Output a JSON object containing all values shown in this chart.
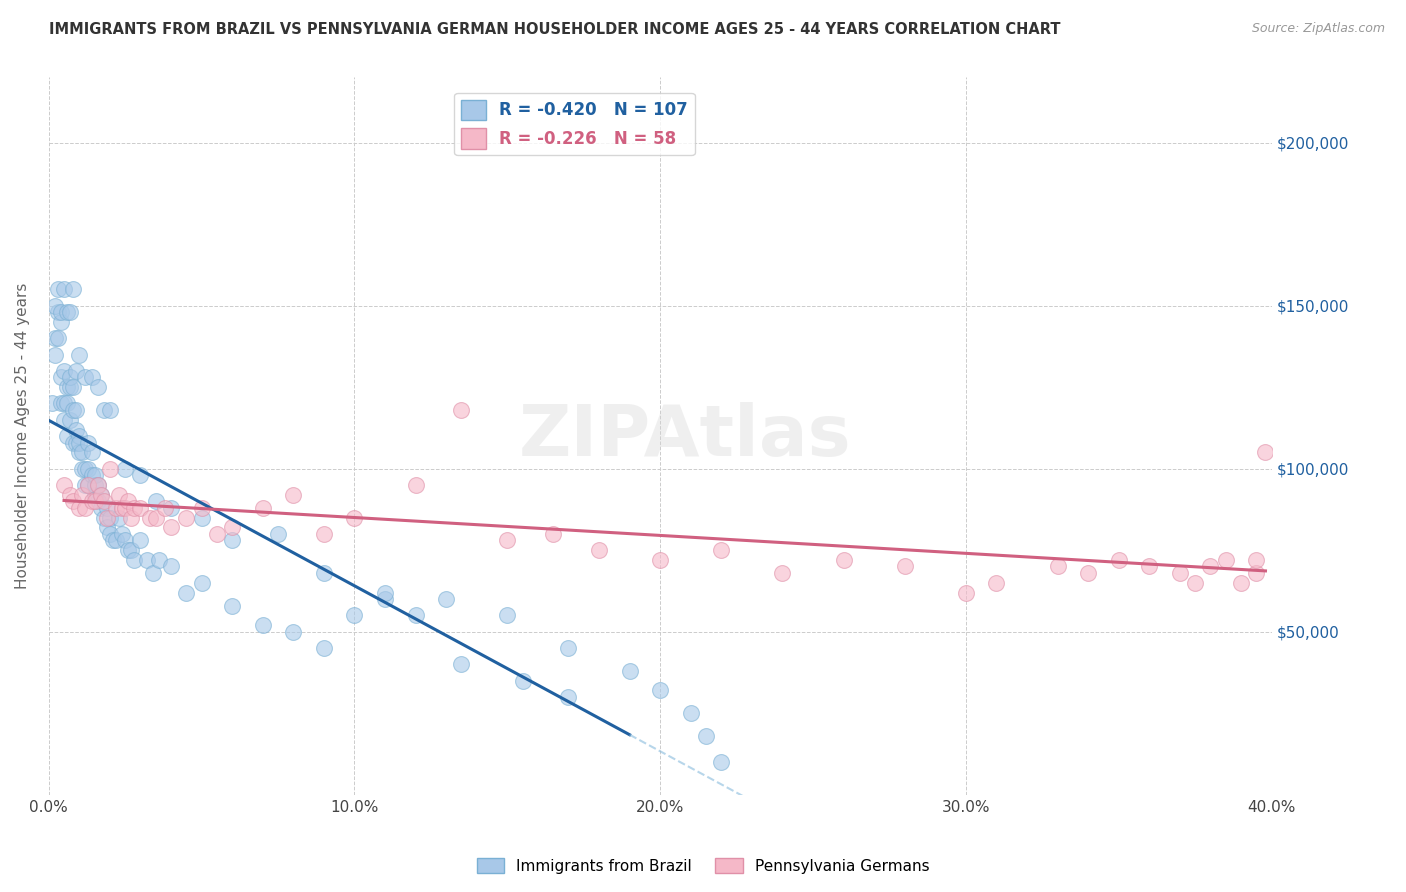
{
  "title": "IMMIGRANTS FROM BRAZIL VS PENNSYLVANIA GERMAN HOUSEHOLDER INCOME AGES 25 - 44 YEARS CORRELATION CHART",
  "source": "Source: ZipAtlas.com",
  "ylabel": "Householder Income Ages 25 - 44 years",
  "xlim": [
    0.0,
    0.4
  ],
  "ylim": [
    0,
    220000
  ],
  "xtick_labels": [
    "0.0%",
    "10.0%",
    "20.0%",
    "30.0%",
    "40.0%"
  ],
  "xtick_vals": [
    0.0,
    0.1,
    0.2,
    0.3,
    0.4
  ],
  "ytick_labels": [
    "$50,000",
    "$100,000",
    "$150,000",
    "$200,000"
  ],
  "ytick_vals": [
    50000,
    100000,
    150000,
    200000
  ],
  "blue_R": "-0.420",
  "blue_N": "107",
  "pink_R": "-0.226",
  "pink_N": "58",
  "blue_label": "Immigrants from Brazil",
  "pink_label": "Pennsylvania Germans",
  "blue_dot_color": "#a8c8e8",
  "blue_edge_color": "#7ab0d4",
  "blue_line_color": "#2060a0",
  "pink_dot_color": "#f5b8c8",
  "pink_edge_color": "#e090a8",
  "pink_line_color": "#d06080",
  "watermark": "ZIPAtlas",
  "background_color": "#ffffff",
  "blue_scatter_x": [
    0.001,
    0.002,
    0.002,
    0.003,
    0.003,
    0.004,
    0.004,
    0.004,
    0.005,
    0.005,
    0.005,
    0.006,
    0.006,
    0.006,
    0.007,
    0.007,
    0.007,
    0.008,
    0.008,
    0.008,
    0.009,
    0.009,
    0.009,
    0.01,
    0.01,
    0.01,
    0.011,
    0.011,
    0.012,
    0.012,
    0.013,
    0.013,
    0.013,
    0.014,
    0.014,
    0.015,
    0.015,
    0.015,
    0.016,
    0.016,
    0.017,
    0.017,
    0.018,
    0.019,
    0.019,
    0.02,
    0.02,
    0.021,
    0.022,
    0.023,
    0.024,
    0.025,
    0.026,
    0.027,
    0.028,
    0.03,
    0.032,
    0.034,
    0.036,
    0.04,
    0.045,
    0.05,
    0.06,
    0.07,
    0.08,
    0.09,
    0.1,
    0.11,
    0.12,
    0.135,
    0.155,
    0.17,
    0.002,
    0.003,
    0.004,
    0.005,
    0.006,
    0.007,
    0.008,
    0.009,
    0.01,
    0.012,
    0.014,
    0.016,
    0.018,
    0.02,
    0.025,
    0.03,
    0.035,
    0.04,
    0.05,
    0.06,
    0.075,
    0.09,
    0.11,
    0.13,
    0.15,
    0.17,
    0.19,
    0.2,
    0.21,
    0.215,
    0.22
  ],
  "blue_scatter_y": [
    120000,
    135000,
    140000,
    140000,
    148000,
    145000,
    128000,
    120000,
    130000,
    115000,
    120000,
    120000,
    125000,
    110000,
    115000,
    125000,
    128000,
    108000,
    118000,
    125000,
    108000,
    112000,
    118000,
    105000,
    110000,
    108000,
    100000,
    105000,
    95000,
    100000,
    100000,
    108000,
    95000,
    98000,
    105000,
    92000,
    95000,
    98000,
    90000,
    95000,
    92000,
    88000,
    85000,
    82000,
    88000,
    80000,
    85000,
    78000,
    78000,
    85000,
    80000,
    78000,
    75000,
    75000,
    72000,
    78000,
    72000,
    68000,
    72000,
    70000,
    62000,
    65000,
    58000,
    52000,
    50000,
    45000,
    55000,
    60000,
    55000,
    40000,
    35000,
    30000,
    150000,
    155000,
    148000,
    155000,
    148000,
    148000,
    155000,
    130000,
    135000,
    128000,
    128000,
    125000,
    118000,
    118000,
    100000,
    98000,
    90000,
    88000,
    85000,
    78000,
    80000,
    68000,
    62000,
    60000,
    55000,
    45000,
    38000,
    32000,
    25000,
    18000,
    10000
  ],
  "pink_scatter_x": [
    0.005,
    0.007,
    0.008,
    0.01,
    0.011,
    0.012,
    0.013,
    0.014,
    0.015,
    0.016,
    0.017,
    0.018,
    0.019,
    0.02,
    0.022,
    0.023,
    0.024,
    0.025,
    0.026,
    0.027,
    0.028,
    0.03,
    0.033,
    0.035,
    0.038,
    0.04,
    0.045,
    0.05,
    0.055,
    0.06,
    0.07,
    0.08,
    0.09,
    0.1,
    0.12,
    0.135,
    0.15,
    0.165,
    0.18,
    0.2,
    0.22,
    0.24,
    0.26,
    0.28,
    0.3,
    0.31,
    0.33,
    0.34,
    0.35,
    0.36,
    0.37,
    0.375,
    0.38,
    0.385,
    0.39,
    0.395,
    0.395,
    0.398
  ],
  "pink_scatter_y": [
    95000,
    92000,
    90000,
    88000,
    92000,
    88000,
    95000,
    90000,
    90000,
    95000,
    92000,
    90000,
    85000,
    100000,
    88000,
    92000,
    88000,
    88000,
    90000,
    85000,
    88000,
    88000,
    85000,
    85000,
    88000,
    82000,
    85000,
    88000,
    80000,
    82000,
    88000,
    92000,
    80000,
    85000,
    95000,
    118000,
    78000,
    80000,
    75000,
    72000,
    75000,
    68000,
    72000,
    70000,
    62000,
    65000,
    70000,
    68000,
    72000,
    70000,
    68000,
    65000,
    70000,
    72000,
    65000,
    68000,
    72000,
    105000
  ]
}
